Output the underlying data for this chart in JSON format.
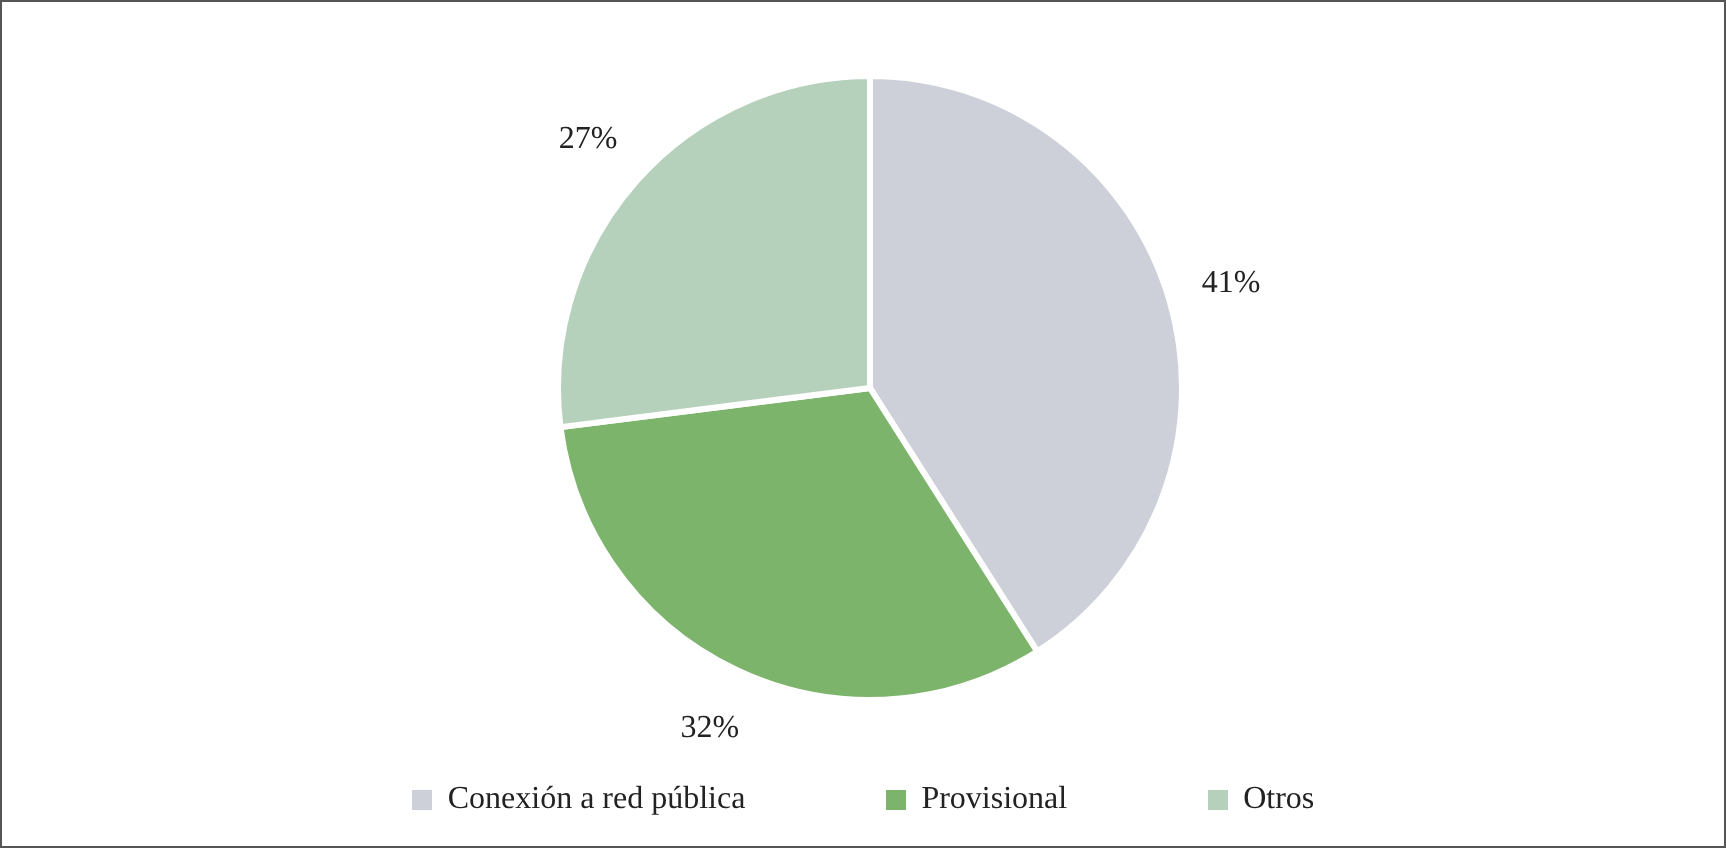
{
  "chart_data": {
    "type": "pie",
    "categories": [
      "Conexión a red pública",
      "Provisional",
      "Otros"
    ],
    "values": [
      41,
      32,
      27
    ],
    "colors": [
      "#cdd0d8",
      "#7db46c",
      "#b5d1bb"
    ],
    "value_labels": [
      "41%",
      "32%",
      "27%"
    ],
    "legend": "bottom"
  }
}
